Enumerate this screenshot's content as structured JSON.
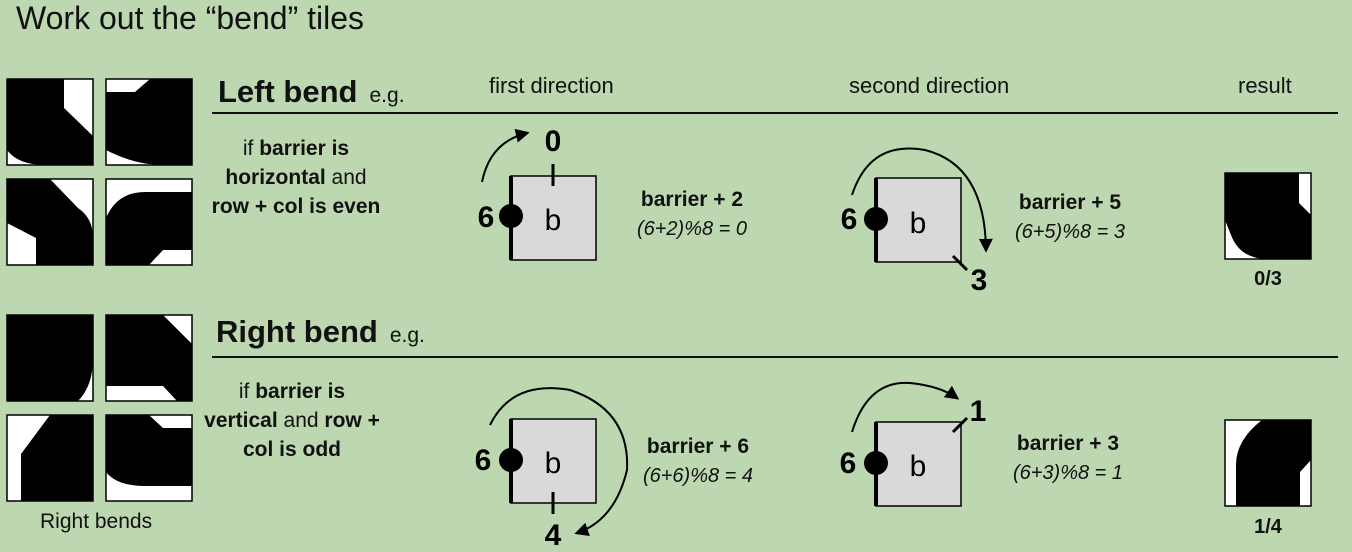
{
  "title": "Work out the “bend” tiles",
  "headers": {
    "first": "first direction",
    "second": "second direction",
    "result": "result"
  },
  "left": {
    "title": "Left bend",
    "eg": "e.g.",
    "cond": {
      "p1": "if ",
      "p2": "barrier is horizontal",
      "p3": " and ",
      "p4": "row + col is even"
    },
    "first": {
      "start": "6",
      "box": "b",
      "end": "0",
      "formula": "barrier + 2",
      "calc": "(6+2)%8 = 0"
    },
    "second": {
      "start": "6",
      "box": "b",
      "end": "3",
      "formula": "barrier + 5",
      "calc": "(6+5)%8 = 3"
    },
    "result": "0/3"
  },
  "right": {
    "title": "Right bend",
    "eg": "e.g.",
    "cond": {
      "p1": "if ",
      "p2": "barrier is vertical",
      "p3": " and ",
      "p4": "row + col is odd"
    },
    "first": {
      "start": "6",
      "box": "b",
      "end": "4",
      "formula": "barrier + 6",
      "calc": "(6+6)%8 = 4"
    },
    "second": {
      "start": "6",
      "box": "b",
      "end": "1",
      "formula": "barrier + 3",
      "calc": "(6+3)%8 = 1"
    },
    "result": "1/4"
  },
  "caption": "Right bends",
  "colors": {
    "background": "#bdd7b0",
    "box": "#d9d9d9",
    "ink": "#000000"
  }
}
